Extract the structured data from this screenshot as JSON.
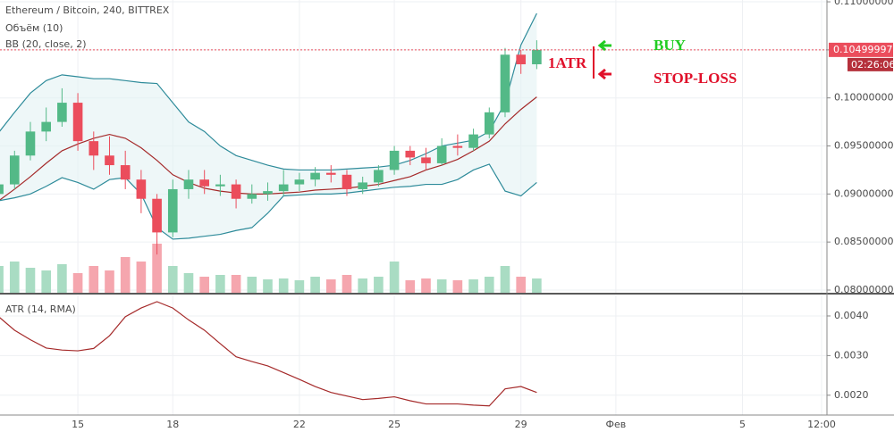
{
  "chart_data": [
    {
      "type": "candlestick",
      "title": "Ethereum / Bitcoin, 240, BITTREX",
      "volume_label": "Объём (10)",
      "bb_label": "BB (20, close, 2)",
      "x": [
        12.5,
        13,
        13.5,
        14,
        14.5,
        15,
        15.5,
        16,
        16.5,
        17,
        17.5,
        18,
        18.5,
        19,
        19.5,
        20,
        20.5,
        21,
        21.5,
        22,
        22.5,
        23,
        23.5,
        24,
        24.5,
        25,
        25.5,
        26,
        26.5,
        27,
        27.5,
        28,
        28.5,
        29,
        29.5
      ],
      "open": [
        0.09,
        0.091,
        0.094,
        0.0965,
        0.0975,
        0.0995,
        0.0955,
        0.094,
        0.093,
        0.0915,
        0.0895,
        0.086,
        0.0905,
        0.0915,
        0.0908,
        0.091,
        0.0895,
        0.09,
        0.0903,
        0.091,
        0.0915,
        0.0922,
        0.092,
        0.0905,
        0.0912,
        0.0925,
        0.0945,
        0.0938,
        0.0932,
        0.095,
        0.0948,
        0.0962,
        0.0985,
        0.1045,
        0.1035
      ],
      "high": [
        0.0915,
        0.0945,
        0.0975,
        0.099,
        0.101,
        0.1005,
        0.0965,
        0.096,
        0.0945,
        0.0925,
        0.09,
        0.0915,
        0.0925,
        0.0925,
        0.092,
        0.0915,
        0.091,
        0.0912,
        0.0925,
        0.0922,
        0.0928,
        0.093,
        0.0925,
        0.0918,
        0.093,
        0.095,
        0.095,
        0.0948,
        0.0958,
        0.0962,
        0.0968,
        0.099,
        0.1052,
        0.105,
        0.106
      ],
      "low": [
        0.0895,
        0.0905,
        0.0935,
        0.0955,
        0.097,
        0.0945,
        0.0925,
        0.092,
        0.0905,
        0.088,
        0.0837,
        0.0855,
        0.0895,
        0.09,
        0.0898,
        0.0885,
        0.089,
        0.0893,
        0.0898,
        0.0903,
        0.0908,
        0.0912,
        0.0898,
        0.09,
        0.0908,
        0.092,
        0.093,
        0.0925,
        0.093,
        0.094,
        0.0945,
        0.0958,
        0.098,
        0.1025,
        0.103
      ],
      "close": [
        0.091,
        0.094,
        0.0965,
        0.0975,
        0.0995,
        0.0955,
        0.094,
        0.093,
        0.0915,
        0.0895,
        0.086,
        0.0905,
        0.0915,
        0.0908,
        0.091,
        0.0895,
        0.09,
        0.0903,
        0.091,
        0.0915,
        0.0922,
        0.092,
        0.0905,
        0.0912,
        0.0925,
        0.0945,
        0.0938,
        0.0932,
        0.095,
        0.0948,
        0.0962,
        0.0985,
        0.1045,
        0.1035,
        0.105
      ],
      "volume": [
        30,
        35,
        28,
        25,
        32,
        22,
        30,
        25,
        40,
        35,
        55,
        30,
        22,
        18,
        20,
        20,
        18,
        15,
        16,
        14,
        18,
        15,
        20,
        16,
        18,
        35,
        14,
        16,
        15,
        14,
        15,
        18,
        30,
        18,
        16
      ],
      "up_color": "#53b987",
      "down_color": "#eb4d5c",
      "up_volume_color": "#a9dcc3",
      "down_volume_color": "#f5a6ae",
      "bb": [
        {
          "name": "upper",
          "color": "#2e8b9a",
          "values": [
            0.0964,
            0.0985,
            0.1005,
            0.1018,
            0.1024,
            0.1022,
            0.102,
            0.102,
            0.1018,
            0.1016,
            0.1015,
            0.0995,
            0.0975,
            0.0965,
            0.095,
            0.094,
            0.0935,
            0.093,
            0.0926,
            0.0925,
            0.0925,
            0.0925,
            0.0926,
            0.0927,
            0.0928,
            0.093,
            0.0935,
            0.0942,
            0.095,
            0.0953,
            0.0956,
            0.0965,
            0.0995,
            0.1055,
            0.1088
          ]
        },
        {
          "name": "basis",
          "color": "#a52a2a",
          "values": [
            0.0893,
            0.0905,
            0.0918,
            0.0932,
            0.0945,
            0.0952,
            0.0958,
            0.0962,
            0.0958,
            0.0948,
            0.0935,
            0.092,
            0.0912,
            0.0906,
            0.0903,
            0.0901,
            0.09,
            0.09,
            0.0901,
            0.0902,
            0.0904,
            0.0905,
            0.0906,
            0.0908,
            0.091,
            0.0914,
            0.0918,
            0.0925,
            0.093,
            0.0936,
            0.0945,
            0.0955,
            0.0973,
            0.0988,
            0.1001
          ]
        },
        {
          "name": "lower",
          "color": "#2e8b9a",
          "values": [
            0.0893,
            0.0896,
            0.09,
            0.0908,
            0.0917,
            0.0912,
            0.0905,
            0.0915,
            0.0917,
            0.09,
            0.0865,
            0.0853,
            0.0854,
            0.0856,
            0.0858,
            0.0862,
            0.0865,
            0.088,
            0.0898,
            0.0899,
            0.09,
            0.09,
            0.0901,
            0.0903,
            0.0905,
            0.0907,
            0.0908,
            0.091,
            0.091,
            0.0915,
            0.0925,
            0.0931,
            0.0903,
            0.0898,
            0.0912
          ]
        }
      ],
      "ylim": [
        0.07972,
        0.11019
      ],
      "yticks": [
        {
          "value": 0.08,
          "label": "0.08000000"
        },
        {
          "value": 0.085,
          "label": "0.08500000"
        },
        {
          "value": 0.09,
          "label": "0.09000000"
        },
        {
          "value": 0.095,
          "label": "0.09500000"
        },
        {
          "value": 0.1,
          "label": "0.10000000"
        },
        {
          "value": 0.105,
          "label": "0.10500000"
        },
        {
          "value": 0.11,
          "label": "0.11000000"
        }
      ],
      "last_price": 0.10499997,
      "last_time": "02:26:06",
      "annotations": {
        "buy": "BUY",
        "stop_loss": "STOP-LOSS",
        "atr_range": "1ATR"
      },
      "grid": true
    },
    {
      "type": "line",
      "title": "ATR (14, RMA)",
      "x": [
        12.5,
        13,
        13.5,
        14,
        14.5,
        15,
        15.5,
        16,
        16.5,
        17,
        17.5,
        18,
        18.5,
        19,
        19.5,
        20,
        20.5,
        21,
        21.5,
        22,
        22.5,
        23,
        23.5,
        24,
        24.5,
        25,
        25.5,
        26,
        26.5,
        27,
        27.5,
        28,
        28.5,
        29,
        29.5
      ],
      "series": [
        {
          "name": "ATR",
          "color": "#a52a2a",
          "values": [
            0.00398,
            0.00364,
            0.0034,
            0.00319,
            0.00314,
            0.00312,
            0.00318,
            0.0035,
            0.00398,
            0.0042,
            0.00436,
            0.0042,
            0.0039,
            0.00364,
            0.0033,
            0.00297,
            0.00285,
            0.00274,
            0.00257,
            0.0024,
            0.00222,
            0.00207,
            0.00198,
            0.00189,
            0.00192,
            0.00196,
            0.00186,
            0.00178,
            0.00178,
            0.00178,
            0.00175,
            0.00173,
            0.00216,
            0.00222,
            0.00207
          ]
        }
      ],
      "xlim": [
        12.54,
        38.67
      ],
      "xticks": [
        15,
        18,
        22,
        25,
        29,
        {
          "value": 32,
          "label": "Фев"
        },
        {
          "value": 36,
          "label": "5"
        },
        {
          "value": 38.5,
          "label": "12:00"
        }
      ],
      "ylim": [
        0.0015,
        0.00454
      ],
      "yticks": [
        {
          "value": 0.002,
          "label": "0.0020"
        },
        {
          "value": 0.003,
          "label": "0.0030"
        },
        {
          "value": 0.004,
          "label": "0.0040"
        }
      ],
      "grid": true
    }
  ]
}
